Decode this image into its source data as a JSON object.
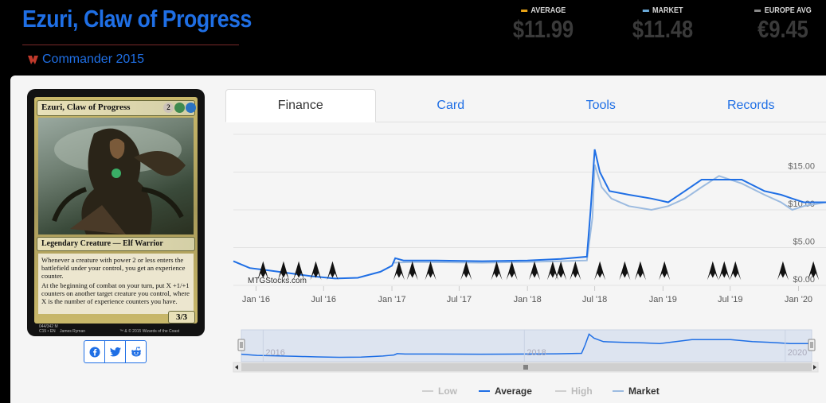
{
  "header": {
    "title": "Ezuri, Claw of Progress",
    "set_name": "Commander 2015",
    "prices": [
      {
        "label": "AVERAGE",
        "value": "$11.99",
        "color": "#e8a317"
      },
      {
        "label": "MARKET",
        "value": "$11.48",
        "color": "#6aa9d8"
      },
      {
        "label": "EUROPE AVG",
        "value": "€9.45",
        "color": "#888888"
      }
    ]
  },
  "card": {
    "name": "Ezuri, Claw of Progress",
    "mana": [
      "2",
      "G",
      "U"
    ],
    "type_line": "Legendary Creature — Elf Warrior",
    "rules_text_1": "Whenever a creature with power 2 or less enters the battlefield under your control, you get an experience counter.",
    "rules_text_2": "At the beginning of combat on your turn, put X +1/+1 counters on another target creature you control, where X is the number of experience counters you have.",
    "pt": "3/3",
    "collector": "044/342 M",
    "set_line": "C15 • EN",
    "artist": "James Ryman",
    "copyright": "™ & © 2015 Wizards of the Coast"
  },
  "share": [
    {
      "name": "facebook-icon"
    },
    {
      "name": "twitter-icon"
    },
    {
      "name": "reddit-icon"
    }
  ],
  "tabs": [
    {
      "label": "Finance",
      "active": true
    },
    {
      "label": "Card",
      "active": false
    },
    {
      "label": "Tools",
      "active": false
    },
    {
      "label": "Records",
      "active": false
    }
  ],
  "chart_data": {
    "type": "line",
    "watermark": "MTGStocks.com",
    "x_ticks": [
      "Jan '16",
      "Jul '16",
      "Jan '17",
      "Jul '17",
      "Jan '18",
      "Jul '18",
      "Jan '19",
      "Jul '19",
      "Jan '20"
    ],
    "y_ticks": [
      "$0.00",
      "$5.00",
      "$10.00",
      "$15.00"
    ],
    "ylim": [
      0,
      20
    ],
    "xlim": [
      "2015-11-01",
      "2020-03-15"
    ],
    "series": [
      {
        "name": "Average",
        "color": "#1f6fe5",
        "points": [
          [
            "2015-11-01",
            3.2
          ],
          [
            "2015-12-15",
            2.3
          ],
          [
            "2016-02-01",
            2.0
          ],
          [
            "2016-04-01",
            1.6
          ],
          [
            "2016-06-01",
            1.2
          ],
          [
            "2016-08-01",
            0.9
          ],
          [
            "2016-10-01",
            1.0
          ],
          [
            "2016-12-01",
            1.8
          ],
          [
            "2017-01-01",
            2.6
          ],
          [
            "2017-01-10",
            3.6
          ],
          [
            "2017-02-01",
            3.3
          ],
          [
            "2017-05-01",
            3.3
          ],
          [
            "2017-09-01",
            3.2
          ],
          [
            "2018-01-01",
            3.3
          ],
          [
            "2018-04-01",
            3.5
          ],
          [
            "2018-06-10",
            3.8
          ],
          [
            "2018-06-20",
            10.0
          ],
          [
            "2018-07-01",
            18.0
          ],
          [
            "2018-07-15",
            15.0
          ],
          [
            "2018-08-10",
            12.5
          ],
          [
            "2018-10-01",
            12.0
          ],
          [
            "2018-12-01",
            11.5
          ],
          [
            "2019-01-15",
            11.0
          ],
          [
            "2019-03-01",
            12.5
          ],
          [
            "2019-04-15",
            14.0
          ],
          [
            "2019-06-01",
            14.0
          ],
          [
            "2019-08-01",
            14.0
          ],
          [
            "2019-10-01",
            12.5
          ],
          [
            "2019-11-15",
            12.0
          ],
          [
            "2019-12-15",
            11.5
          ],
          [
            "2020-01-15",
            11.0
          ],
          [
            "2020-03-15",
            11.0
          ]
        ]
      },
      {
        "name": "Market",
        "color": "#9cbbe0",
        "points": [
          [
            "2017-01-05",
            3.0
          ],
          [
            "2017-03-01",
            3.1
          ],
          [
            "2017-09-01",
            3.0
          ],
          [
            "2018-01-01",
            3.1
          ],
          [
            "2018-06-10",
            3.3
          ],
          [
            "2018-06-25",
            9.0
          ],
          [
            "2018-07-01",
            16.0
          ],
          [
            "2018-07-20",
            13.0
          ],
          [
            "2018-08-15",
            11.5
          ],
          [
            "2018-10-01",
            10.5
          ],
          [
            "2018-12-01",
            10.0
          ],
          [
            "2019-01-15",
            10.5
          ],
          [
            "2019-03-01",
            11.5
          ],
          [
            "2019-04-15",
            13.0
          ],
          [
            "2019-06-01",
            14.5
          ],
          [
            "2019-08-01",
            13.5
          ],
          [
            "2019-10-01",
            12.0
          ],
          [
            "2019-11-15",
            11.0
          ],
          [
            "2019-12-15",
            10.0
          ],
          [
            "2020-01-15",
            10.5
          ],
          [
            "2020-03-15",
            11.0
          ]
        ]
      }
    ],
    "navigator_ticks": [
      "2016",
      "2018",
      "2020"
    ],
    "legend": [
      {
        "label": "Low",
        "color": "#cfcfcf",
        "active": false
      },
      {
        "label": "Average",
        "color": "#1f6fe5",
        "active": true
      },
      {
        "label": "High",
        "color": "#cfcfcf",
        "active": false
      },
      {
        "label": "Market",
        "color": "#9cbbe0",
        "active": true
      }
    ]
  }
}
